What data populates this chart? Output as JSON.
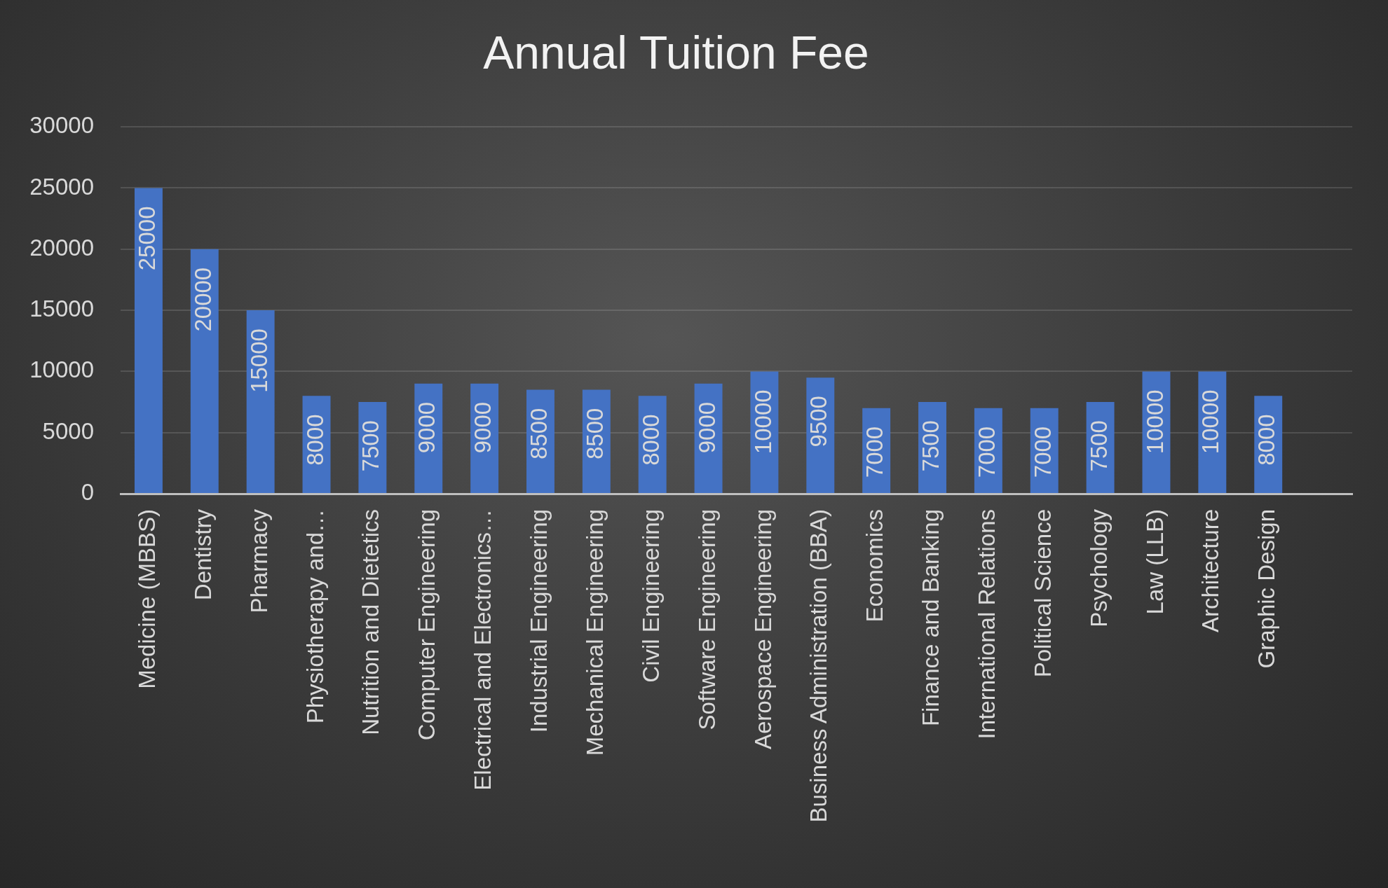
{
  "chart_data": {
    "type": "bar",
    "title": "Annual Tuition Fee",
    "categories": [
      "Medicine (MBBS)",
      "Dentistry",
      "Pharmacy",
      "Physiotherapy and…",
      "Nutrition and Dietetics",
      "Computer Engineering",
      "Electrical and Electronics…",
      "Industrial Engineering",
      "Mechanical Engineering",
      "Civil Engineering",
      "Software Engineering",
      "Aerospace Engineering",
      "Business Administration (BBA)",
      "Economics",
      "Finance and Banking",
      "International Relations",
      "Political Science",
      "Psychology",
      "Law (LLB)",
      "Architecture",
      "Graphic Design",
      null
    ],
    "values": [
      25000,
      20000,
      15000,
      8000,
      7500,
      9000,
      9000,
      8500,
      8500,
      8000,
      9000,
      10000,
      9500,
      7000,
      7500,
      7000,
      7000,
      7500,
      10000,
      10000,
      8000,
      null
    ],
    "color": "#4472c4",
    "ylim": [
      0,
      30000
    ],
    "yticks": [
      0,
      5000,
      10000,
      15000,
      20000,
      25000,
      30000
    ],
    "grid": "y",
    "data_labels": true
  }
}
